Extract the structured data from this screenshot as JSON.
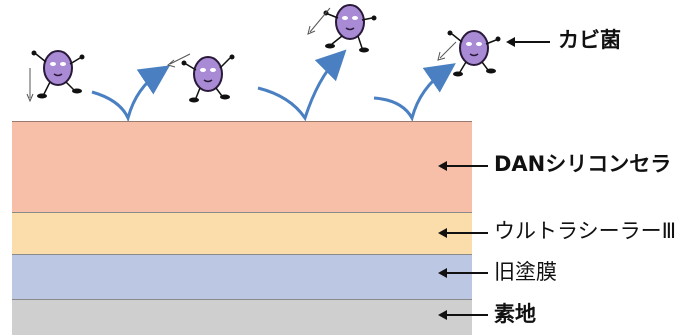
{
  "labels": {
    "mold": "カビ菌",
    "coating": "DANシリコンセラ",
    "sealer": "ウルトラシーラーⅢ",
    "old_film": "旧塗膜",
    "substrate": "素地"
  },
  "colors": {
    "coating": "#f7bfa8",
    "sealer": "#fbdcab",
    "old_film": "#bcc8e3",
    "substrate": "#cfcfcf",
    "bounce_arrow": "#4a80c2",
    "mold_body": "#a98ad4",
    "mold_outline": "#2a1a3a"
  }
}
